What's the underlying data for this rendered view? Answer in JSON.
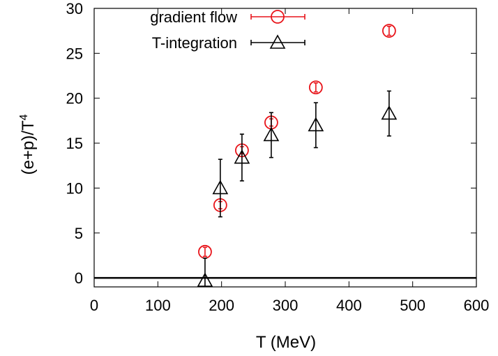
{
  "chart_data": {
    "type": "scatter",
    "xlabel": "T (MeV)",
    "ylabel_main": "(e+p)/T",
    "ylabel_exponent": "4",
    "xlim": [
      0,
      600
    ],
    "ylim": [
      -1,
      30
    ],
    "xticks": [
      0,
      100,
      200,
      300,
      400,
      500,
      600
    ],
    "yticks": [
      0,
      5,
      10,
      15,
      20,
      25,
      30
    ],
    "grid": false,
    "legend_position": "top-left",
    "zero_line": 0,
    "series": [
      {
        "name": "gradient flow",
        "marker": "circle",
        "color": "#e8141a",
        "points": [
          {
            "x": 174,
            "y": 2.9,
            "err": 0.5
          },
          {
            "x": 198,
            "y": 8.1,
            "err": 0.4
          },
          {
            "x": 232,
            "y": 14.2,
            "err": 0.4
          },
          {
            "x": 278,
            "y": 17.3,
            "err": 0.4
          },
          {
            "x": 348,
            "y": 21.2,
            "err": 0.5
          },
          {
            "x": 463,
            "y": 27.5,
            "err": 0.5
          }
        ]
      },
      {
        "name": "T-integration",
        "marker": "triangle",
        "color": "#000000",
        "points": [
          {
            "x": 174,
            "y": -0.3,
            "err": 2.5
          },
          {
            "x": 198,
            "y": 10.0,
            "err": 3.2
          },
          {
            "x": 232,
            "y": 13.4,
            "err": 2.6
          },
          {
            "x": 278,
            "y": 15.9,
            "err": 2.5
          },
          {
            "x": 348,
            "y": 17.0,
            "err": 2.5
          },
          {
            "x": 463,
            "y": 18.3,
            "err": 2.5
          }
        ]
      }
    ]
  }
}
